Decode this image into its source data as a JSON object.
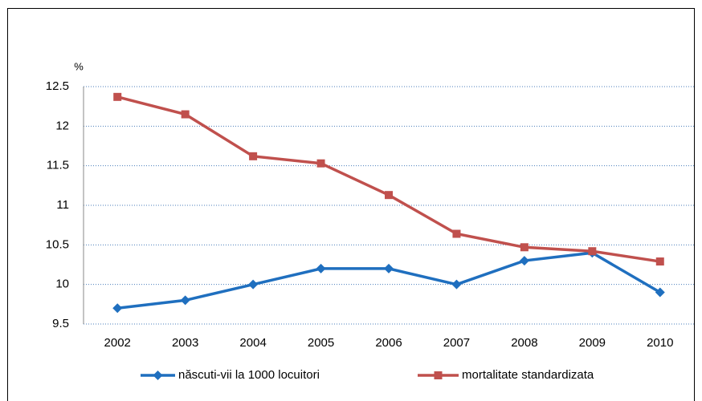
{
  "chart_data": {
    "type": "line",
    "y_label": "%",
    "categories": [
      "2002",
      "2003",
      "2004",
      "2005",
      "2006",
      "2007",
      "2008",
      "2009",
      "2010"
    ],
    "series": [
      {
        "name": "născuti-vii la 1000 locuitori",
        "color": "#1f6fbf",
        "marker": "diamond",
        "values": [
          9.7,
          9.8,
          10.0,
          10.2,
          10.2,
          10.0,
          10.3,
          10.4,
          9.9
        ]
      },
      {
        "name": "mortalitate standardizata",
        "color": "#c0504d",
        "marker": "square",
        "values": [
          12.37,
          12.15,
          11.62,
          11.53,
          11.13,
          10.64,
          10.47,
          10.42,
          10.29
        ]
      }
    ],
    "ylim": [
      9.5,
      12.5
    ],
    "yticks": [
      9.5,
      10,
      10.5,
      11,
      11.5,
      12,
      12.5
    ],
    "grid": true,
    "legend": "bottom"
  }
}
